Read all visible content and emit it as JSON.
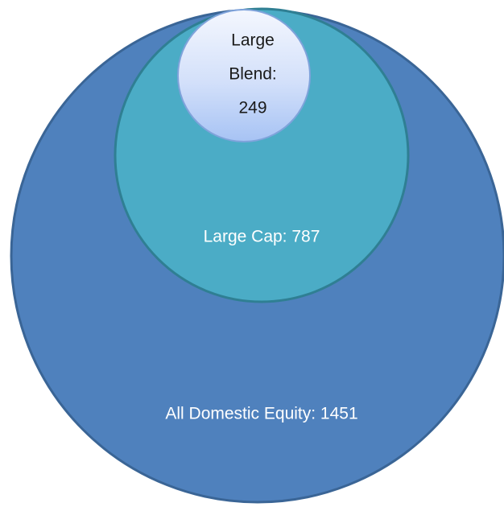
{
  "nodes": [
    {
      "label": [
        "All Domestic Equity: 1451"
      ]
    },
    {
      "label": [
        "Large Cap: 787"
      ]
    },
    {
      "label": [
        "Large",
        "Blend:",
        "249"
      ]
    }
  ]
}
